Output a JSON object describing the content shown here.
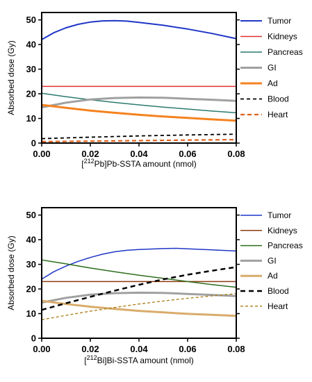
{
  "chart_data": [
    {
      "type": "line",
      "xlabel_prefix": "[",
      "xlabel_sup": "212",
      "xlabel_suffix": "Pb]Pb-SSTA amount (nmol)",
      "ylabel": "Absorbed dose (Gy)",
      "xlim": [
        0,
        0.08
      ],
      "ylim": [
        0,
        53
      ],
      "xticks": [
        "0.00",
        "0.02",
        "0.04",
        "0.06",
        "0.08"
      ],
      "yticks": [
        "0",
        "10",
        "20",
        "30",
        "40",
        "50"
      ],
      "legend_position": "right",
      "series": [
        {
          "name": "Tumor",
          "color": "#1f35c7",
          "width": 2,
          "dash": "",
          "x": [
            0,
            0.005,
            0.01,
            0.015,
            0.02,
            0.025,
            0.03,
            0.035,
            0.04,
            0.05,
            0.06,
            0.07,
            0.08
          ],
          "y": [
            42,
            44.8,
            46.8,
            48.2,
            49.1,
            49.6,
            49.7,
            49.5,
            49,
            47.8,
            46.3,
            44.5,
            42.4
          ]
        },
        {
          "name": "Kidneys",
          "color": "#e03030",
          "width": 1.5,
          "dash": "",
          "x": [
            0,
            0.08
          ],
          "y": [
            23,
            23
          ]
        },
        {
          "name": "Pancreas",
          "color": "#2a7a6e",
          "width": 1.5,
          "dash": "",
          "x": [
            0,
            0.01,
            0.02,
            0.03,
            0.04,
            0.05,
            0.06,
            0.07,
            0.08
          ],
          "y": [
            20.2,
            18.8,
            17.6,
            16.5,
            15.5,
            14.6,
            13.8,
            13,
            12.3
          ]
        },
        {
          "name": "GI",
          "color": "#a0a0a0",
          "width": 3,
          "dash": "",
          "x": [
            0,
            0.01,
            0.02,
            0.03,
            0.04,
            0.05,
            0.06,
            0.07,
            0.08
          ],
          "y": [
            14.5,
            16.4,
            17.7,
            18.3,
            18.5,
            18.4,
            18,
            17.6,
            17.1
          ]
        },
        {
          "name": "Ad",
          "color": "#f5821f",
          "width": 3,
          "dash": "",
          "x": [
            0,
            0.01,
            0.02,
            0.03,
            0.04,
            0.05,
            0.06,
            0.07,
            0.08
          ],
          "y": [
            15.5,
            14.3,
            13.2,
            12.3,
            11.5,
            10.8,
            10.2,
            9.6,
            9.1
          ]
        },
        {
          "name": "Blood",
          "color": "#000000",
          "width": 1.8,
          "dash": "5,4",
          "x": [
            0,
            0.02,
            0.04,
            0.06,
            0.08
          ],
          "y": [
            1.8,
            2.4,
            2.9,
            3.3,
            3.6
          ]
        },
        {
          "name": "Heart",
          "color": "#e0621b",
          "width": 2.2,
          "dash": "6,4",
          "x": [
            0,
            0.02,
            0.04,
            0.06,
            0.08
          ],
          "y": [
            0.6,
            0.8,
            1.0,
            1.2,
            1.4
          ]
        }
      ]
    },
    {
      "type": "line",
      "xlabel_prefix": "[",
      "xlabel_sup": "212",
      "xlabel_suffix": "Bi]Bi-SSTA amount (nmol)",
      "ylabel": "Absorbed dose (Gy)",
      "xlim": [
        0,
        0.08
      ],
      "ylim": [
        0,
        53
      ],
      "xticks": [
        "0.00",
        "0.02",
        "0.04",
        "0.06",
        "0.08"
      ],
      "yticks": [
        "0",
        "10",
        "20",
        "30",
        "40",
        "50"
      ],
      "legend_position": "right",
      "series": [
        {
          "name": "Tumor",
          "color": "#1f35c7",
          "width": 1.5,
          "dash": "",
          "x": [
            0,
            0.005,
            0.01,
            0.015,
            0.02,
            0.025,
            0.03,
            0.035,
            0.04,
            0.05,
            0.055,
            0.06,
            0.07,
            0.08
          ],
          "y": [
            24,
            27,
            29.3,
            31.2,
            32.8,
            34.1,
            35.1,
            35.7,
            36,
            36.4,
            36.5,
            36.3,
            35.9,
            35.4
          ]
        },
        {
          "name": "Kidneys",
          "color": "#8b3a0f",
          "width": 1.5,
          "dash": "",
          "x": [
            0,
            0.08
          ],
          "y": [
            23,
            23
          ]
        },
        {
          "name": "Pancreas",
          "color": "#2d6e1e",
          "width": 1.5,
          "dash": "",
          "x": [
            0,
            0.01,
            0.02,
            0.03,
            0.04,
            0.05,
            0.06,
            0.07,
            0.08
          ],
          "y": [
            31.8,
            30.2,
            28.5,
            27,
            25.6,
            24.3,
            23,
            21.8,
            20.7
          ]
        },
        {
          "name": "GI",
          "color": "#a0a0a0",
          "width": 3,
          "dash": "",
          "x": [
            0,
            0.01,
            0.02,
            0.03,
            0.04,
            0.05,
            0.06,
            0.07,
            0.08
          ],
          "y": [
            14.5,
            16.4,
            17.7,
            18.3,
            18.5,
            18.4,
            18,
            17.6,
            17.1
          ]
        },
        {
          "name": "Ad",
          "color": "#d9ac6b",
          "width": 3,
          "dash": "",
          "x": [
            0,
            0.01,
            0.02,
            0.03,
            0.04,
            0.05,
            0.06,
            0.07,
            0.08
          ],
          "y": [
            15.2,
            13.9,
            12.8,
            11.9,
            11.1,
            10.5,
            9.9,
            9.5,
            9.1
          ]
        },
        {
          "name": "Blood",
          "color": "#000000",
          "width": 2.5,
          "dash": "7,5",
          "x": [
            0,
            0.01,
            0.02,
            0.03,
            0.04,
            0.05,
            0.06,
            0.07,
            0.08
          ],
          "y": [
            11.5,
            14.2,
            16.8,
            19.3,
            21.7,
            23.9,
            25.8,
            27.4,
            28.9
          ]
        },
        {
          "name": "Heart",
          "color": "#a8780f",
          "width": 1.3,
          "dash": "4,3",
          "x": [
            0,
            0.01,
            0.02,
            0.03,
            0.04,
            0.05,
            0.06,
            0.07,
            0.08
          ],
          "y": [
            7.5,
            9.3,
            11,
            12.5,
            13.9,
            15.1,
            16.2,
            17.2,
            18.1
          ]
        }
      ]
    }
  ]
}
